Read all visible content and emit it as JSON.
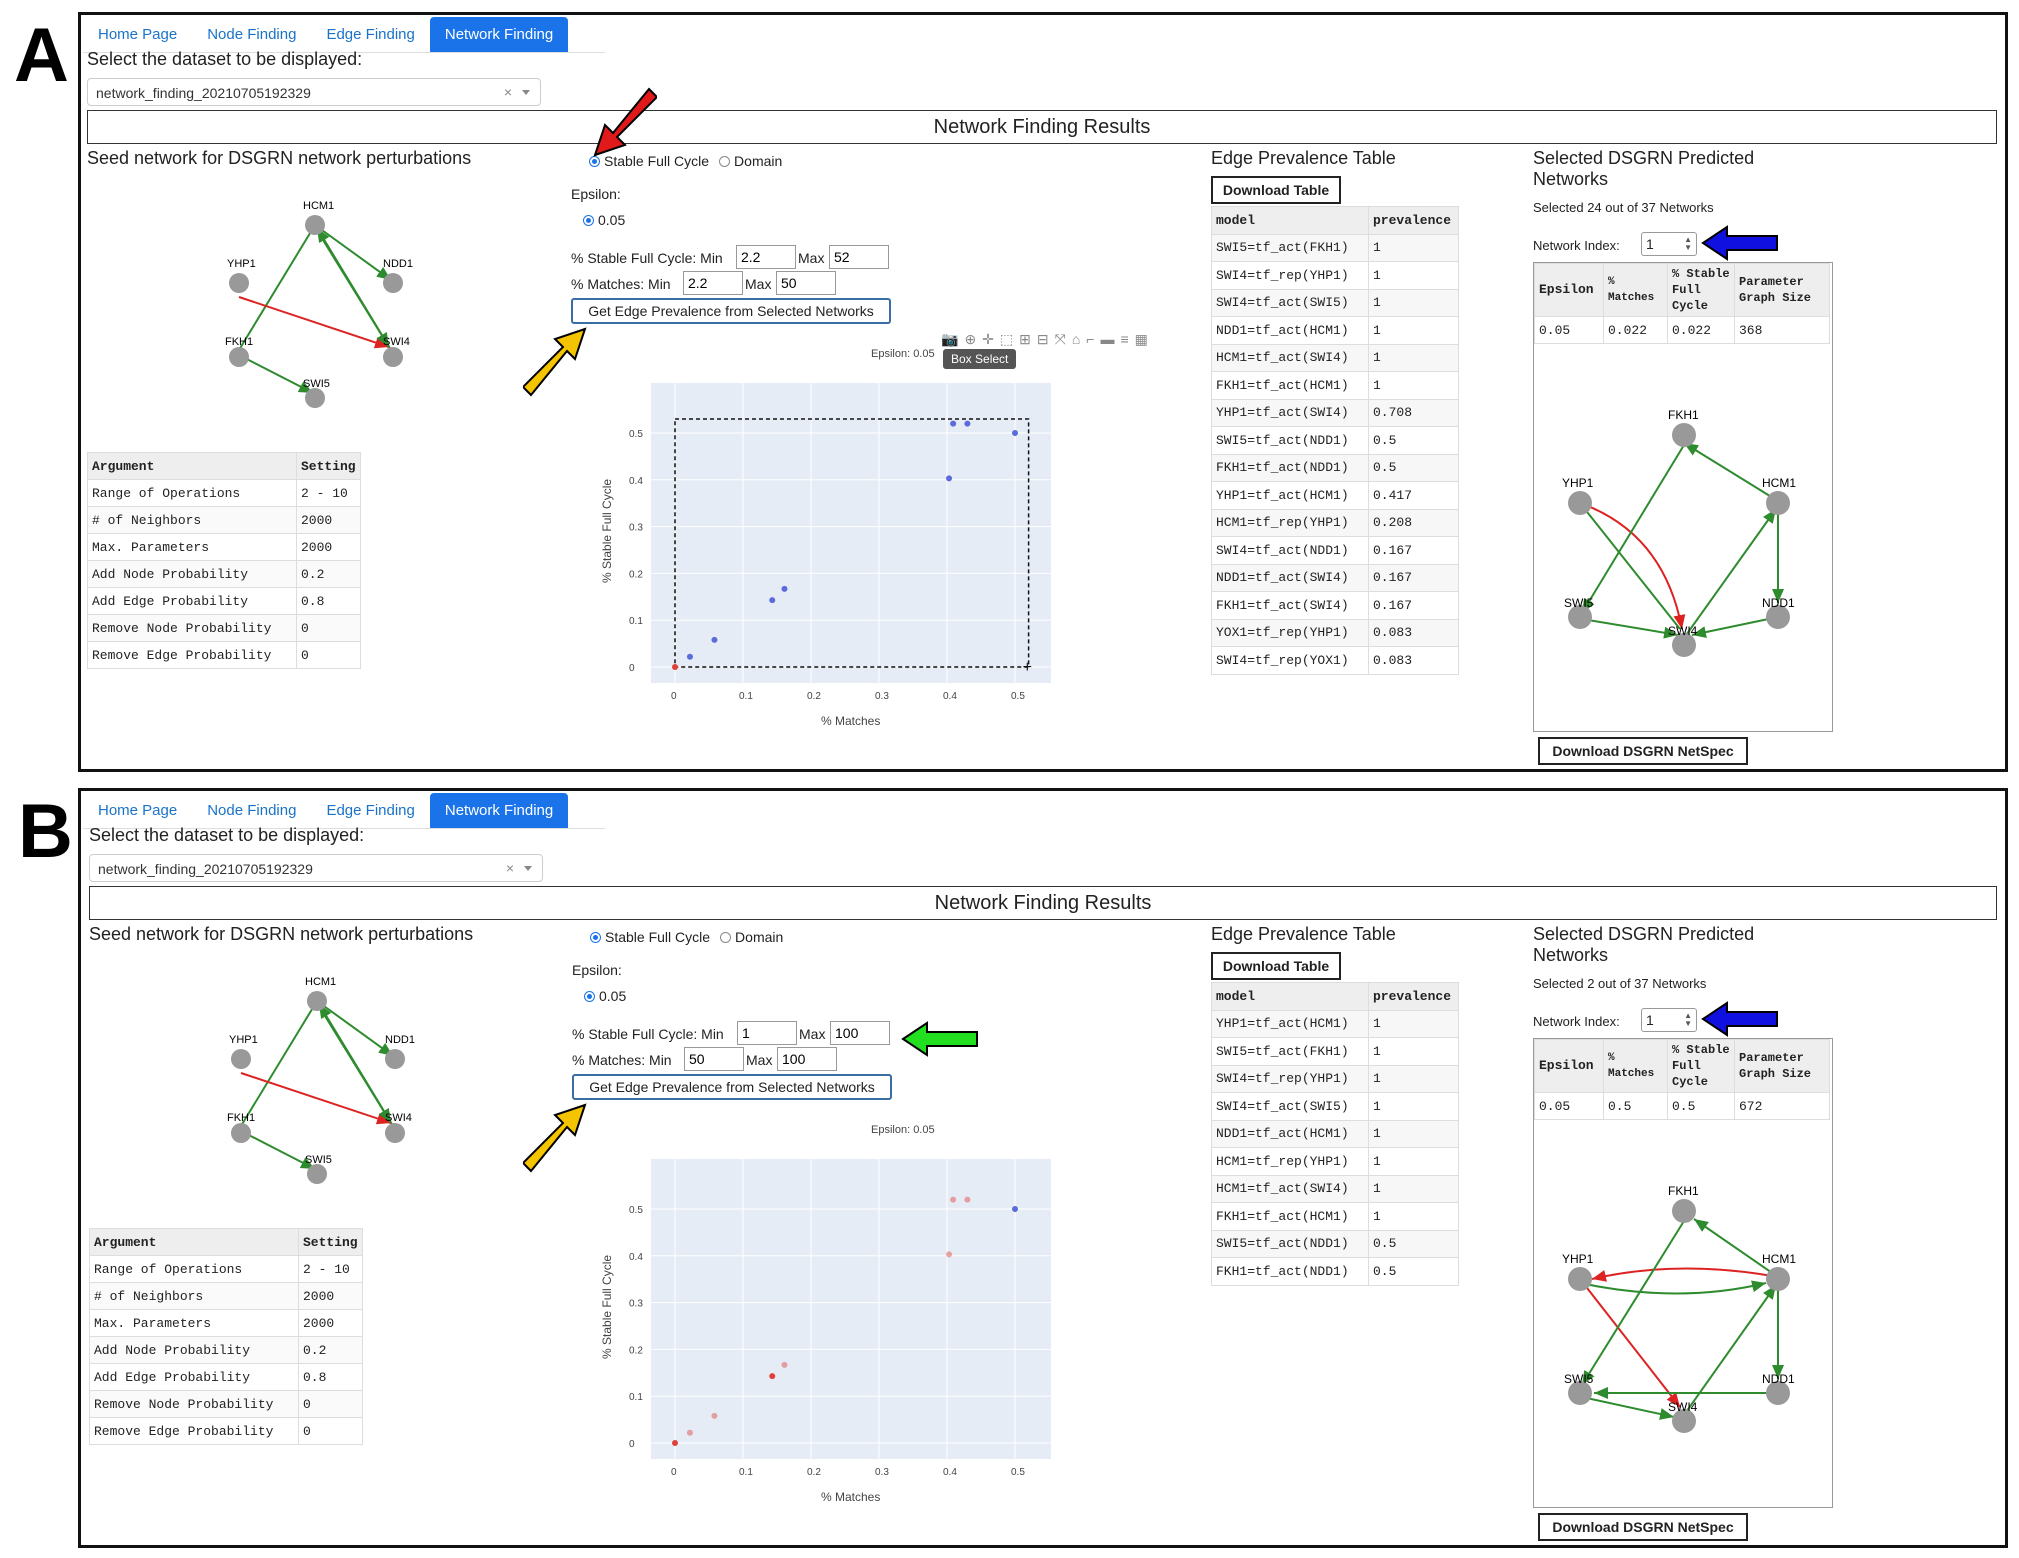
{
  "panels": [
    {
      "letter": "A",
      "tabs": [
        "Home Page",
        "Node Finding",
        "Edge Finding",
        "Network Finding"
      ],
      "active_tab": 3,
      "select_label": "Select the dataset to be displayed:",
      "dataset_value": "network_finding_20210705192329",
      "dataset_clear": "×",
      "results_title": "Network Finding Results",
      "seed_title": "Seed network for DSGRN network perturbations",
      "seed_nodes": [
        "HCM1",
        "YHP1",
        "NDD1",
        "FKH1",
        "SWI4",
        "SWI5"
      ],
      "arg_table": {
        "headers": [
          "Argument",
          "Setting"
        ],
        "rows": [
          [
            "Range of Operations",
            "2 - 10"
          ],
          [
            "# of Neighbors",
            "2000"
          ],
          [
            "Max. Parameters",
            "2000"
          ],
          [
            "Add Node Probability",
            "0.2"
          ],
          [
            "Add Edge Probability",
            "0.8"
          ],
          [
            "Remove Node Probability",
            "0"
          ],
          [
            "Remove Edge Probability",
            "0"
          ]
        ]
      },
      "radio_options": [
        "Stable Full Cycle",
        "Domain"
      ],
      "epsilon_label": "Epsilon:",
      "epsilon_value": "0.05",
      "sfc_label": "% Stable Full Cycle: Min",
      "sfc_min": "2.2",
      "sfc_max": "52",
      "matches_label": "% Matches: Min",
      "matches_min": "2.2",
      "matches_max": "50",
      "max_label": "Max",
      "get_button": "Get Edge Prevalence from Selected Networks",
      "plot_title": "Epsilon: 0.05",
      "tooltip": "Box Select",
      "prevalence_title": "Edge Prevalence Table",
      "download_table": "Download Table",
      "prevalence_table": {
        "headers": [
          "model",
          "prevalence"
        ],
        "rows": [
          [
            "SWI5=tf_act(FKH1)",
            "1"
          ],
          [
            "SWI4=tf_rep(YHP1)",
            "1"
          ],
          [
            "SWI4=tf_act(SWI5)",
            "1"
          ],
          [
            "NDD1=tf_act(HCM1)",
            "1"
          ],
          [
            "HCM1=tf_act(SWI4)",
            "1"
          ],
          [
            "FKH1=tf_act(HCM1)",
            "1"
          ],
          [
            "YHP1=tf_act(SWI4)",
            "0.708"
          ],
          [
            "SWI5=tf_act(NDD1)",
            "0.5"
          ],
          [
            "FKH1=tf_act(NDD1)",
            "0.5"
          ],
          [
            "YHP1=tf_act(HCM1)",
            "0.417"
          ],
          [
            "HCM1=tf_rep(YHP1)",
            "0.208"
          ],
          [
            "SWI4=tf_act(NDD1)",
            "0.167"
          ],
          [
            "NDD1=tf_act(SWI4)",
            "0.167"
          ],
          [
            "FKH1=tf_act(SWI4)",
            "0.167"
          ],
          [
            "YOX1=tf_rep(YHP1)",
            "0.083"
          ],
          [
            "SWI4=tf_rep(YOX1)",
            "0.083"
          ]
        ]
      },
      "selected_title": "Selected DSGRN Predicted Networks",
      "selected_count": "Selected 24 out of 37 Networks",
      "network_index_label": "Network Index:",
      "network_index_value": "1",
      "sel_table": {
        "headers": [
          "Epsilon",
          "% Matches",
          "% Stable Full Cycle",
          "Parameter Graph Size"
        ],
        "row": [
          "0.05",
          "0.022",
          "0.022",
          "368"
        ]
      },
      "net_nodes": [
        "FKH1",
        "YHP1",
        "HCM1",
        "SWI5",
        "NDD1",
        "SWI4"
      ],
      "download_netspec": "Download DSGRN NetSpec"
    },
    {
      "letter": "B",
      "tabs": [
        "Home Page",
        "Node Finding",
        "Edge Finding",
        "Network Finding"
      ],
      "active_tab": 3,
      "select_label": "Select the dataset to be displayed:",
      "dataset_value": "network_finding_20210705192329",
      "dataset_clear": "×",
      "results_title": "Network Finding Results",
      "seed_title": "Seed network for DSGRN network perturbations",
      "seed_nodes": [
        "HCM1",
        "YHP1",
        "NDD1",
        "FKH1",
        "SWI4",
        "SWI5"
      ],
      "arg_table": {
        "headers": [
          "Argument",
          "Setting"
        ],
        "rows": [
          [
            "Range of Operations",
            "2 - 10"
          ],
          [
            "# of Neighbors",
            "2000"
          ],
          [
            "Max. Parameters",
            "2000"
          ],
          [
            "Add Node Probability",
            "0.2"
          ],
          [
            "Add Edge Probability",
            "0.8"
          ],
          [
            "Remove Node Probability",
            "0"
          ],
          [
            "Remove Edge Probability",
            "0"
          ]
        ]
      },
      "radio_options": [
        "Stable Full Cycle",
        "Domain"
      ],
      "epsilon_label": "Epsilon:",
      "epsilon_value": "0.05",
      "sfc_label": "% Stable Full Cycle: Min",
      "sfc_min": "1",
      "sfc_max": "100",
      "matches_label": "% Matches: Min",
      "matches_min": "50",
      "matches_max": "100",
      "max_label": "Max",
      "get_button": "Get Edge Prevalence from Selected Networks",
      "plot_title": "Epsilon: 0.05",
      "prevalence_title": "Edge Prevalence Table",
      "download_table": "Download Table",
      "prevalence_table": {
        "headers": [
          "model",
          "prevalence"
        ],
        "rows": [
          [
            "YHP1=tf_act(HCM1)",
            "1"
          ],
          [
            "SWI5=tf_act(FKH1)",
            "1"
          ],
          [
            "SWI4=tf_rep(YHP1)",
            "1"
          ],
          [
            "SWI4=tf_act(SWI5)",
            "1"
          ],
          [
            "NDD1=tf_act(HCM1)",
            "1"
          ],
          [
            "HCM1=tf_rep(YHP1)",
            "1"
          ],
          [
            "HCM1=tf_act(SWI4)",
            "1"
          ],
          [
            "FKH1=tf_act(HCM1)",
            "1"
          ],
          [
            "SWI5=tf_act(NDD1)",
            "0.5"
          ],
          [
            "FKH1=tf_act(NDD1)",
            "0.5"
          ]
        ]
      },
      "selected_title": "Selected DSGRN Predicted Networks",
      "selected_count": "Selected 2 out of 37 Networks",
      "network_index_label": "Network Index:",
      "network_index_value": "1",
      "sel_table": {
        "headers": [
          "Epsilon",
          "% Matches",
          "% Stable Full Cycle",
          "Parameter Graph Size"
        ],
        "row": [
          "0.05",
          "0.5",
          "0.5",
          "672"
        ]
      },
      "net_nodes": [
        "FKH1",
        "YHP1",
        "HCM1",
        "SWI5",
        "NDD1",
        "SWI4"
      ],
      "download_netspec": "Download DSGRN NetSpec"
    }
  ],
  "chart_data": [
    {
      "type": "scatter",
      "panel": "A",
      "title": "Epsilon: 0.05",
      "xlabel": "% Matches",
      "ylabel": "% Stable Full Cycle",
      "xlim": [
        0,
        0.5
      ],
      "ylim": [
        0,
        0.5
      ],
      "xticks": [
        "0",
        "0.1",
        "0.2",
        "0.3",
        "0.4",
        "0.5"
      ],
      "yticks": [
        "0",
        "0.1",
        "0.2",
        "0.3",
        "0.4",
        "0.5"
      ],
      "grid": true,
      "points": [
        {
          "x": 0,
          "y": 0,
          "selected": false
        },
        {
          "x": 0.022,
          "y": 0.022,
          "selected": true
        },
        {
          "x": 0.058,
          "y": 0.058,
          "selected": true
        },
        {
          "x": 0.143,
          "y": 0.143,
          "selected": true
        },
        {
          "x": 0.161,
          "y": 0.167,
          "selected": true
        },
        {
          "x": 0.403,
          "y": 0.403,
          "selected": true
        },
        {
          "x": 0.409,
          "y": 0.52,
          "selected": true
        },
        {
          "x": 0.43,
          "y": 0.52,
          "selected": true
        },
        {
          "x": 0.5,
          "y": 0.5,
          "selected": true
        }
      ],
      "selection_box": {
        "x": [
          0,
          0.52
        ],
        "y": [
          0,
          0.53
        ]
      }
    },
    {
      "type": "scatter",
      "panel": "B",
      "title": "Epsilon: 0.05",
      "xlabel": "% Matches",
      "ylabel": "% Stable Full Cycle",
      "xlim": [
        0,
        0.5
      ],
      "ylim": [
        0,
        0.5
      ],
      "xticks": [
        "0",
        "0.1",
        "0.2",
        "0.3",
        "0.4",
        "0.5"
      ],
      "yticks": [
        "0",
        "0.1",
        "0.2",
        "0.3",
        "0.4",
        "0.5"
      ],
      "grid": true,
      "points": [
        {
          "x": 0,
          "y": 0,
          "selected": false
        },
        {
          "x": 0.022,
          "y": 0.022,
          "selected": false
        },
        {
          "x": 0.058,
          "y": 0.058,
          "selected": false
        },
        {
          "x": 0.143,
          "y": 0.143,
          "selected": false
        },
        {
          "x": 0.161,
          "y": 0.167,
          "selected": false
        },
        {
          "x": 0.403,
          "y": 0.403,
          "selected": false
        },
        {
          "x": 0.409,
          "y": 0.52,
          "selected": false
        },
        {
          "x": 0.43,
          "y": 0.52,
          "selected": false
        },
        {
          "x": 0.5,
          "y": 0.5,
          "selected": true
        }
      ]
    }
  ],
  "colors": {
    "accent": "#1a73e8",
    "activation_edge": "#2e8b2e",
    "repression_edge": "#dd2222",
    "node": "#999999",
    "plot_bg": "#e5ecf6",
    "point_selected": "#5b6bdb",
    "point_unselected": "#e0403a",
    "arrow_red": "#e01a1a",
    "arrow_yellow": "#f5c400",
    "arrow_blue": "#1010e0",
    "arrow_green": "#22e020"
  }
}
